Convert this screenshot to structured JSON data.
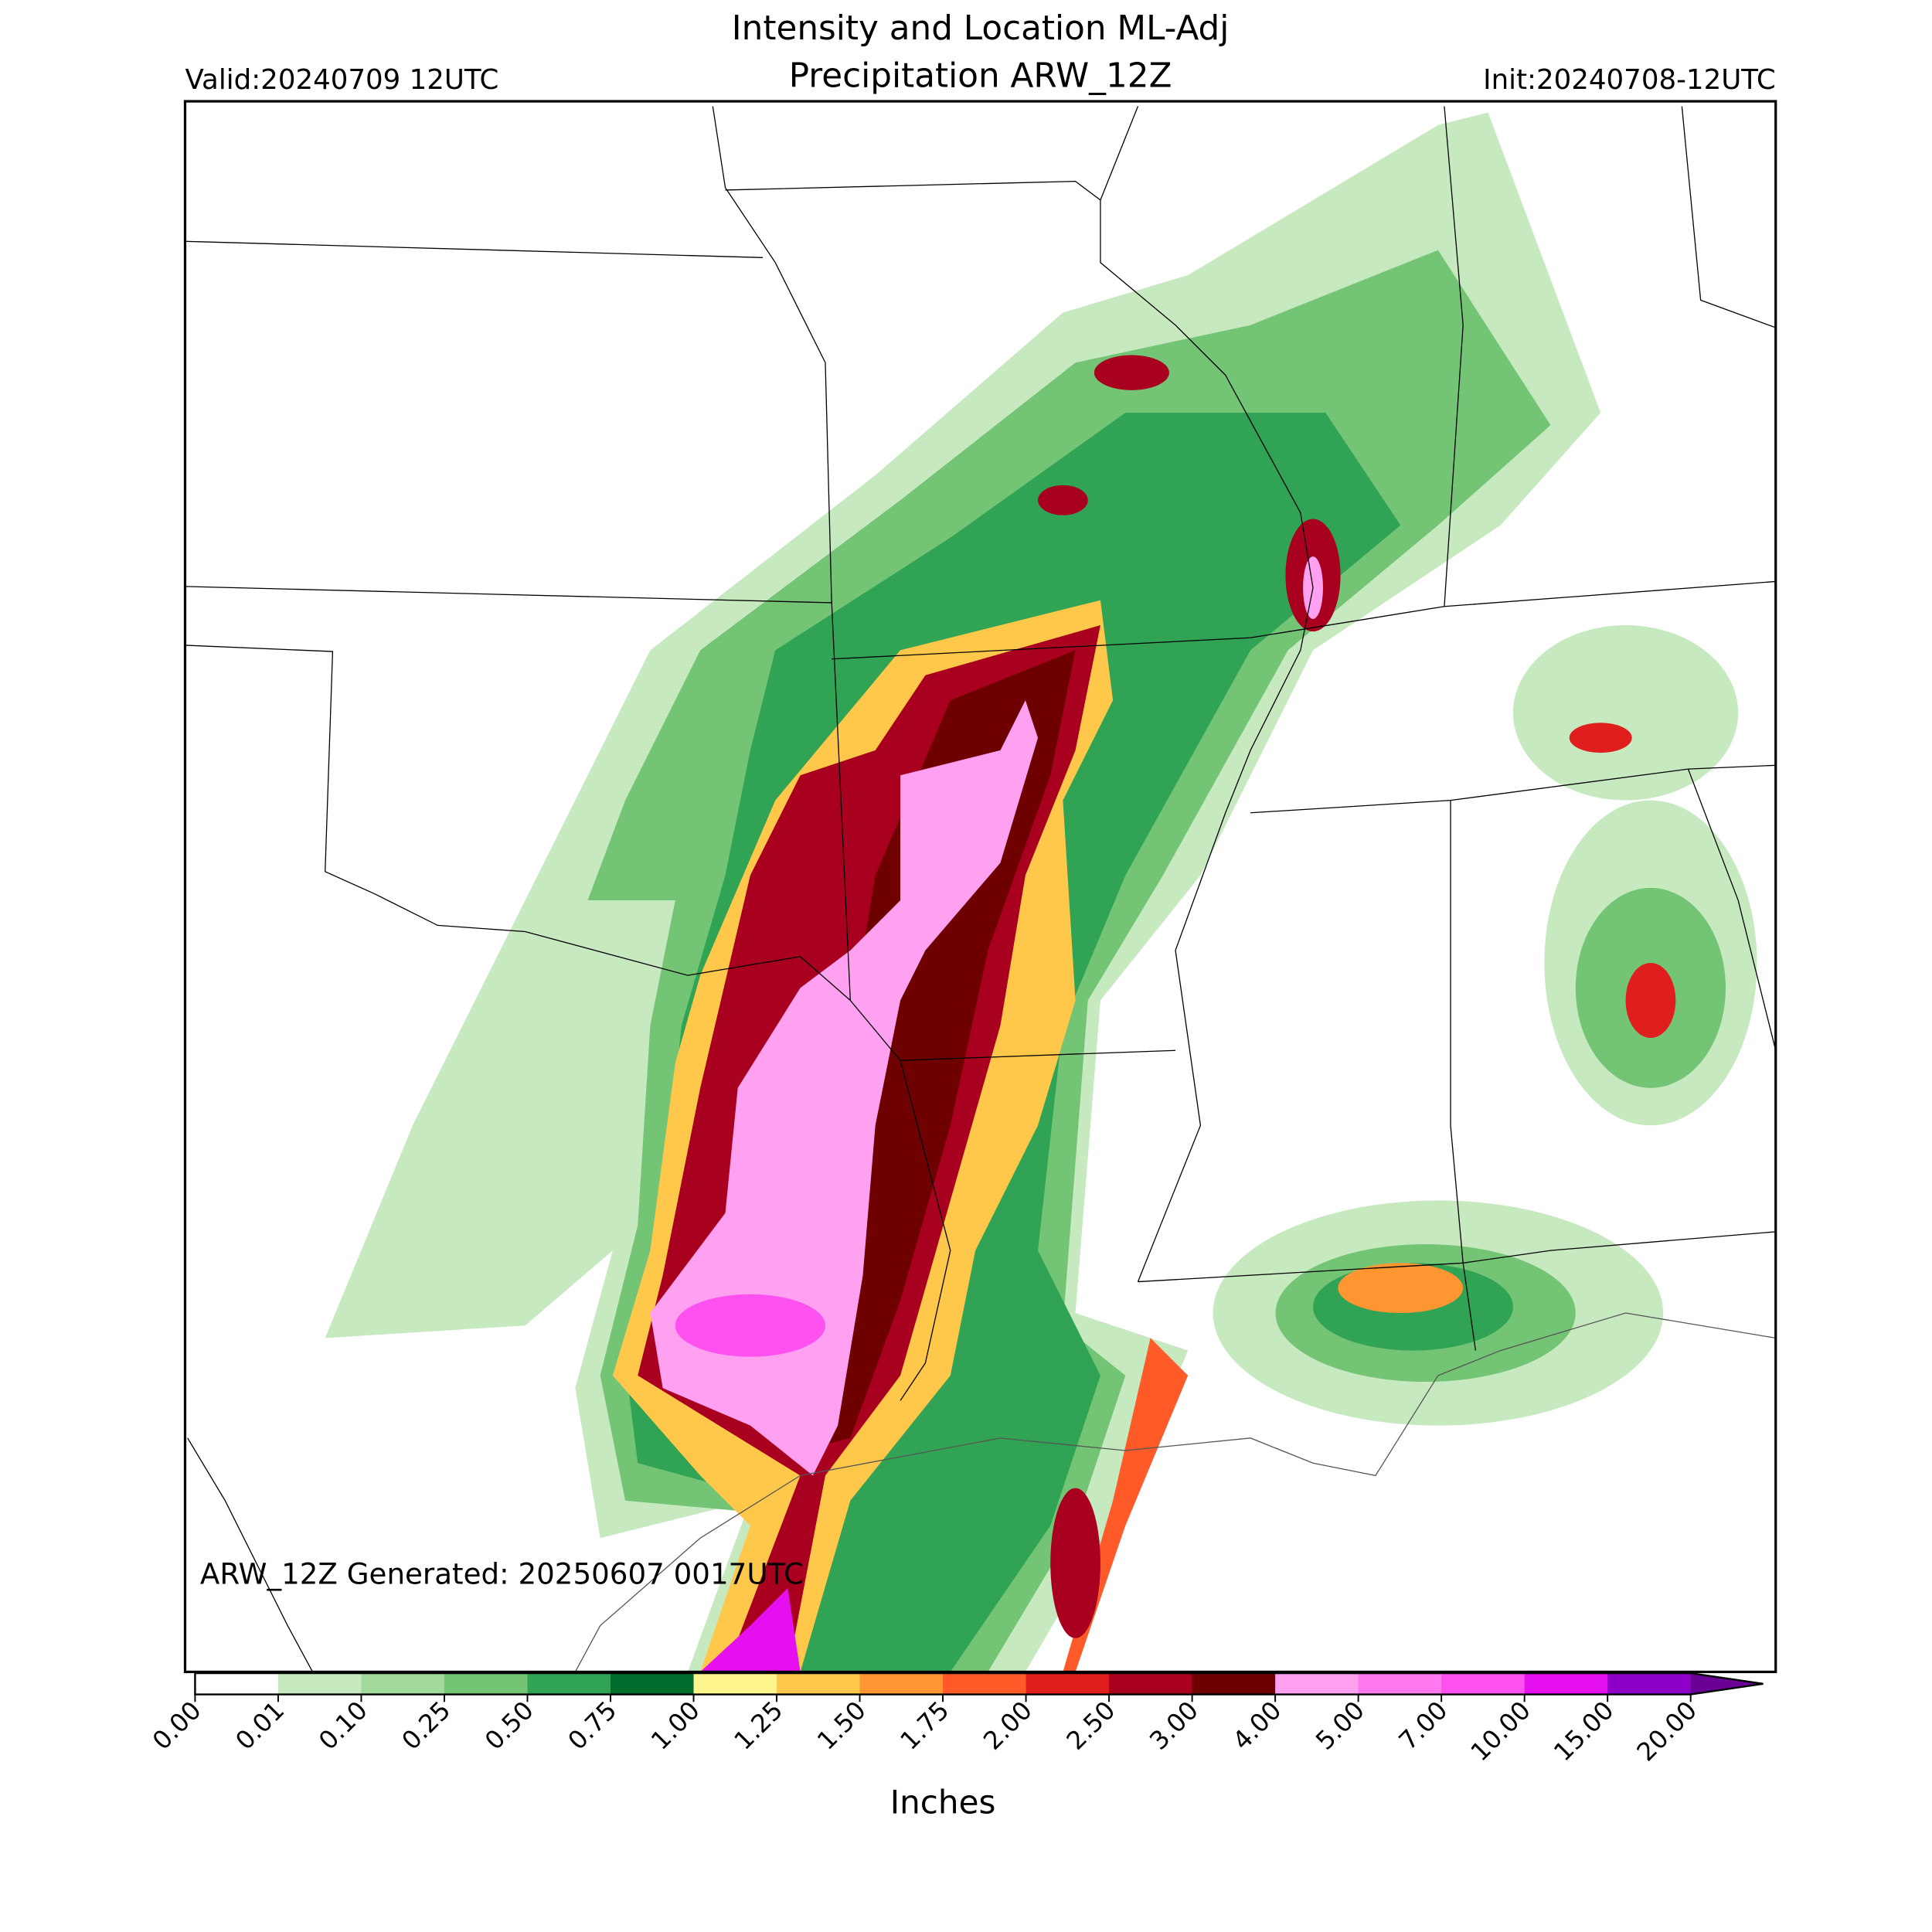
{
  "title_lines": [
    "Intensity and Location ML-Adj",
    "Precipitation ARW_12Z"
  ],
  "valid": "Valid:20240709 12UTC",
  "init": "Init:20240708-12UTC",
  "footer": "ARW_12Z Generated: 20250607 0017UTC",
  "colorbar": {
    "label": "Inches",
    "ticks": [
      {
        "value": 0,
        "label": "0.00"
      },
      {
        "value": 0.01,
        "label": "0.01"
      },
      {
        "value": 0.1,
        "label": "0.10"
      },
      {
        "value": 0.25,
        "label": "0.25"
      },
      {
        "value": 0.5,
        "label": "0.50"
      },
      {
        "value": 0.75,
        "label": "0.75"
      },
      {
        "value": 1,
        "label": "1.00"
      },
      {
        "value": 1.25,
        "label": "1.25"
      },
      {
        "value": 1.5,
        "label": "1.50"
      },
      {
        "value": 1.75,
        "label": "1.75"
      },
      {
        "value": 2,
        "label": "2.00"
      },
      {
        "value": 2.5,
        "label": "2.50"
      },
      {
        "value": 3,
        "label": "3.00"
      },
      {
        "value": 4,
        "label": "4.00"
      },
      {
        "value": 5,
        "label": "5.00"
      },
      {
        "value": 7,
        "label": "7.00"
      },
      {
        "value": 10,
        "label": "10.00"
      },
      {
        "value": 15,
        "label": "15.00"
      },
      {
        "value": 20,
        "label": "20.00"
      }
    ],
    "colors": [
      "#ffffff",
      "#c7e9c0",
      "#a1d99b",
      "#74c476",
      "#31a354",
      "#006d2c",
      "#fff68f",
      "#ffc84b",
      "#ff9632",
      "#ff5a28",
      "#e01e1e",
      "#a8001e",
      "#6e0000",
      "#ffa0f0",
      "#ff78f0",
      "#ff50f0",
      "#e60ff0",
      "#8c00c8"
    ],
    "extend_color": "#6a0096"
  }
}
